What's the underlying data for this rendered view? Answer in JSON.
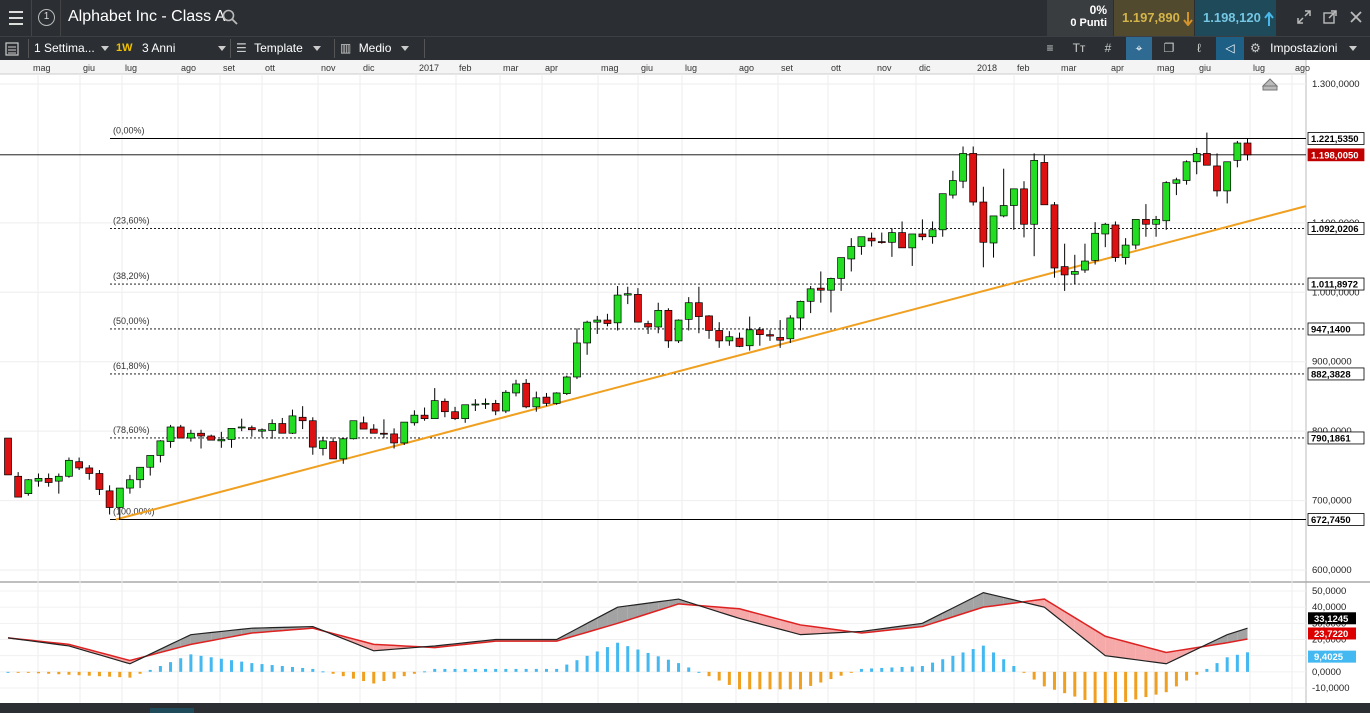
{
  "header": {
    "instrument_title": "Alphabet Inc - Class A",
    "change_pct": "0%",
    "change_points": "0 Punti",
    "sell_price": "1.197,890",
    "buy_price": "1.198,120",
    "info_icon": "info-circle-icon",
    "search_icon": "search-icon",
    "sell_arrow_icon": "arrow-down-icon",
    "buy_arrow_icon": "arrow-up-icon",
    "window_icons": [
      "collapse-icon",
      "popout-icon",
      "close-icon"
    ]
  },
  "toolbar": {
    "interval": "1 Settima...",
    "interval_badge": "1W",
    "range": "3 Anni",
    "template_label": "Template",
    "studies_label": "Medio",
    "settings_label": "Impostazioni",
    "tool_icons": [
      "order-book-icon",
      "text-size-icon",
      "grid-icon",
      "crosshair-icon",
      "layers-icon",
      "drawing-tool-icon",
      "eraser-icon",
      "gear-icon"
    ]
  },
  "colors": {
    "bull": "#22dd22",
    "bear": "#dd1111",
    "trendline": "#f0a020",
    "signal": "#dd2222",
    "macd": "#222222",
    "hist_pos": "#44b8f0",
    "hist_neg": "#f0a020",
    "price_label_bg": "#c00000"
  },
  "chart_data": {
    "type": "candlestick",
    "x_axis": {
      "date_labels": [
        "mag",
        "giu",
        "lug",
        "ago",
        "set",
        "ott",
        "nov",
        "dic",
        "2017",
        "feb",
        "mar",
        "apr",
        "mag",
        "giu",
        "lug",
        "ago",
        "set",
        "ott",
        "nov",
        "dic",
        "2018",
        "feb",
        "mar",
        "apr",
        "mag",
        "giu",
        "lug",
        "ago"
      ]
    },
    "y_axis": {
      "range": [
        580000,
        1310000
      ],
      "tick_labels": [
        "1.300,0000",
        "1.100,0000",
        "1.000,0000",
        "900,0000",
        "800,0000",
        "700,0000",
        "600,0000"
      ],
      "tick_values": [
        1300000,
        1100000,
        1000000,
        900000,
        800000,
        700000,
        600000
      ]
    },
    "price_labels": [
      {
        "value": 1221535,
        "text": "1.221,5350",
        "style": "white"
      },
      {
        "value": 1198005,
        "text": "1.198,0050",
        "style": "red"
      },
      {
        "value": 1092021,
        "text": "1.092,0206",
        "style": "white"
      },
      {
        "value": 1011897,
        "text": "1.011,8972",
        "style": "white"
      },
      {
        "value": 947140,
        "text": "947,1400",
        "style": "white"
      },
      {
        "value": 882383,
        "text": "882,3828",
        "style": "white"
      },
      {
        "value": 790186,
        "text": "790,1861",
        "style": "white"
      },
      {
        "value": 672745,
        "text": "672,7450",
        "style": "white"
      }
    ],
    "fibonacci": [
      {
        "label": "(0,00%)",
        "value": 1221535
      },
      {
        "label": "(23,60%)",
        "value": 1092021
      },
      {
        "label": "(38,20%)",
        "value": 1011897
      },
      {
        "label": "(50,00%)",
        "value": 947140
      },
      {
        "label": "(61,80%)",
        "value": 882383
      },
      {
        "label": "(78,60%)",
        "value": 790186
      },
      {
        "label": "(100,00%)",
        "value": 672745
      }
    ],
    "trendline": {
      "from": {
        "week": 11,
        "value": 672745
      },
      "to": {
        "week": 125,
        "value": 1112000
      }
    },
    "candles": [
      [
        790,
        785,
        740,
        737
      ],
      [
        735,
        741,
        730,
        705
      ],
      [
        710,
        731,
        707,
        730
      ],
      [
        728,
        739,
        720,
        732
      ],
      [
        732,
        739,
        720,
        726
      ],
      [
        728,
        739,
        710,
        735
      ],
      [
        735,
        762,
        733,
        758
      ],
      [
        756,
        762,
        744,
        747
      ],
      [
        747,
        751,
        730,
        739
      ],
      [
        739,
        744,
        708,
        716
      ],
      [
        714,
        722,
        680,
        690
      ],
      [
        690,
        717,
        672,
        718
      ],
      [
        718,
        737,
        710,
        730
      ],
      [
        730,
        740,
        718,
        748
      ],
      [
        748,
        765,
        736,
        765
      ],
      [
        765,
        787,
        755,
        786
      ],
      [
        785,
        809,
        776,
        806
      ],
      [
        806,
        809,
        790,
        790
      ],
      [
        790,
        802,
        785,
        797
      ],
      [
        797,
        802,
        775,
        793
      ],
      [
        793,
        795,
        787,
        787
      ],
      [
        786,
        799,
        776,
        788
      ],
      [
        788,
        804,
        776,
        804
      ],
      [
        805,
        818,
        800,
        806
      ],
      [
        805,
        808,
        792,
        802
      ],
      [
        800,
        804,
        791,
        802
      ],
      [
        801,
        817,
        789,
        811
      ],
      [
        811,
        819,
        797,
        797
      ],
      [
        797,
        831,
        796,
        822
      ],
      [
        820,
        836,
        803,
        815
      ],
      [
        815,
        820,
        766,
        777
      ],
      [
        775,
        792,
        765,
        786
      ],
      [
        785,
        791,
        760,
        760
      ],
      [
        760,
        789,
        753,
        789
      ],
      [
        789,
        815,
        788,
        815
      ],
      [
        812,
        821,
        803,
        803
      ],
      [
        803,
        810,
        797,
        797
      ],
      [
        797,
        817,
        790,
        796
      ],
      [
        796,
        804,
        775,
        783
      ],
      [
        783,
        813,
        780,
        813
      ],
      [
        812,
        830,
        808,
        823
      ],
      [
        823,
        834,
        815,
        818
      ],
      [
        818,
        862,
        818,
        844
      ],
      [
        843,
        847,
        820,
        828
      ],
      [
        828,
        835,
        816,
        818
      ],
      [
        818,
        836,
        812,
        838
      ],
      [
        838,
        846,
        829,
        839
      ],
      [
        839,
        847,
        832,
        840
      ],
      [
        840,
        845,
        823,
        829
      ],
      [
        829,
        859,
        826,
        856
      ],
      [
        855,
        874,
        850,
        868
      ],
      [
        869,
        875,
        833,
        835
      ],
      [
        835,
        857,
        828,
        848
      ],
      [
        849,
        855,
        836,
        840
      ],
      [
        840,
        856,
        838,
        855
      ],
      [
        854,
        880,
        852,
        878
      ],
      [
        878,
        948,
        875,
        927
      ],
      [
        927,
        959,
        910,
        957
      ],
      [
        957,
        966,
        940,
        960
      ],
      [
        960,
        969,
        951,
        955
      ],
      [
        956,
        1009,
        945,
        996
      ],
      [
        996,
        1008,
        983,
        998
      ],
      [
        997,
        1006,
        959,
        957
      ],
      [
        955,
        959,
        940,
        950
      ],
      [
        950,
        985,
        941,
        974
      ],
      [
        974,
        977,
        920,
        930
      ],
      [
        930,
        961,
        927,
        960
      ],
      [
        961,
        993,
        945,
        985
      ],
      [
        985,
        1008,
        941,
        965
      ],
      [
        966,
        967,
        933,
        945
      ],
      [
        945,
        957,
        920,
        930
      ],
      [
        930,
        944,
        923,
        936
      ],
      [
        934,
        942,
        921,
        922
      ],
      [
        923,
        965,
        916,
        946
      ],
      [
        946,
        950,
        923,
        939
      ],
      [
        939,
        946,
        930,
        937
      ],
      [
        935,
        960,
        920,
        931
      ],
      [
        933,
        967,
        927,
        963
      ],
      [
        963,
        988,
        945,
        987
      ],
      [
        987,
        1009,
        970,
        1005
      ],
      [
        1006,
        1030,
        985,
        1003
      ],
      [
        1003,
        1021,
        971,
        1020
      ],
      [
        1020,
        1040,
        1002,
        1050
      ],
      [
        1048,
        1078,
        1030,
        1066
      ],
      [
        1066,
        1076,
        1054,
        1080
      ],
      [
        1078,
        1086,
        1066,
        1074
      ],
      [
        1073,
        1086,
        1070,
        1072
      ],
      [
        1072,
        1092,
        1051,
        1086
      ],
      [
        1086,
        1102,
        1070,
        1064
      ],
      [
        1064,
        1083,
        1038,
        1084
      ],
      [
        1084,
        1105,
        1075,
        1080
      ],
      [
        1080,
        1102,
        1070,
        1090
      ],
      [
        1090,
        1107,
        1080,
        1142
      ],
      [
        1140,
        1175,
        1135,
        1161
      ],
      [
        1160,
        1210,
        1150,
        1200
      ],
      [
        1200,
        1210,
        1125,
        1130
      ],
      [
        1130,
        1152,
        1036,
        1072
      ],
      [
        1071,
        1098,
        1050,
        1110
      ],
      [
        1110,
        1178,
        1108,
        1125
      ],
      [
        1125,
        1143,
        1090,
        1149
      ],
      [
        1149,
        1160,
        1079,
        1098
      ],
      [
        1098,
        1200,
        1052,
        1190
      ],
      [
        1187,
        1198,
        1142,
        1126
      ],
      [
        1126,
        1130,
        1021,
        1035
      ],
      [
        1037,
        1070,
        1002,
        1025
      ],
      [
        1026,
        1054,
        1011,
        1030
      ],
      [
        1032,
        1070,
        1028,
        1045
      ],
      [
        1046,
        1101,
        1040,
        1085
      ],
      [
        1084,
        1100,
        1065,
        1098
      ],
      [
        1097,
        1102,
        1044,
        1050
      ],
      [
        1050,
        1078,
        1040,
        1068
      ],
      [
        1068,
        1105,
        1062,
        1105
      ],
      [
        1105,
        1127,
        1080,
        1098
      ],
      [
        1098,
        1110,
        1080,
        1105
      ],
      [
        1103,
        1160,
        1090,
        1158
      ],
      [
        1157,
        1165,
        1140,
        1162
      ],
      [
        1161,
        1190,
        1155,
        1188
      ],
      [
        1188,
        1208,
        1170,
        1200
      ],
      [
        1200,
        1230,
        1185,
        1183
      ],
      [
        1182,
        1200,
        1138,
        1146
      ],
      [
        1146,
        1172,
        1128,
        1188
      ],
      [
        1190,
        1218,
        1180,
        1215
      ],
      [
        1215,
        1221,
        1190,
        1198
      ]
    ],
    "macd": {
      "range": [
        -15000,
        55000
      ],
      "tick_labels": [
        "50,0000",
        "40,0000",
        "30,0000",
        "20,0000",
        "10,0000",
        "0,0000",
        "-10,0000"
      ],
      "tick_values": [
        50000,
        40000,
        30000,
        20000,
        10000,
        0,
        -10000
      ],
      "current_labels": [
        {
          "value": 33124.5,
          "text": "33,1245",
          "style": "black"
        },
        {
          "value": 23722,
          "text": "23,7220",
          "style": "red"
        },
        {
          "value": 9402.5,
          "text": "9,4025",
          "style": "blue"
        }
      ],
      "macd_line": [
        [
          0,
          21000
        ],
        [
          6,
          16000
        ],
        [
          12,
          5000
        ],
        [
          18,
          23000
        ],
        [
          24,
          27000
        ],
        [
          30,
          28000
        ],
        [
          36,
          13000
        ],
        [
          42,
          16000
        ],
        [
          48,
          20000
        ],
        [
          54,
          20000
        ],
        [
          60,
          40000
        ],
        [
          66,
          45000
        ],
        [
          72,
          33000
        ],
        [
          78,
          23000
        ],
        [
          84,
          25000
        ],
        [
          90,
          30000
        ],
        [
          96,
          49000
        ],
        [
          102,
          40000
        ],
        [
          108,
          10000
        ],
        [
          114,
          5000
        ],
        [
          120,
          23000
        ],
        [
          125,
          33000
        ]
      ],
      "signal_line": [
        [
          0,
          21000
        ],
        [
          6,
          17000
        ],
        [
          12,
          7000
        ],
        [
          18,
          17000
        ],
        [
          24,
          24000
        ],
        [
          30,
          27000
        ],
        [
          36,
          17000
        ],
        [
          42,
          15000
        ],
        [
          48,
          19000
        ],
        [
          54,
          19000
        ],
        [
          60,
          30000
        ],
        [
          66,
          42000
        ],
        [
          72,
          39000
        ],
        [
          78,
          29000
        ],
        [
          84,
          24000
        ],
        [
          90,
          28000
        ],
        [
          96,
          40000
        ],
        [
          102,
          45000
        ],
        [
          108,
          22000
        ],
        [
          114,
          12000
        ],
        [
          120,
          18000
        ],
        [
          125,
          23722
        ]
      ]
    }
  }
}
